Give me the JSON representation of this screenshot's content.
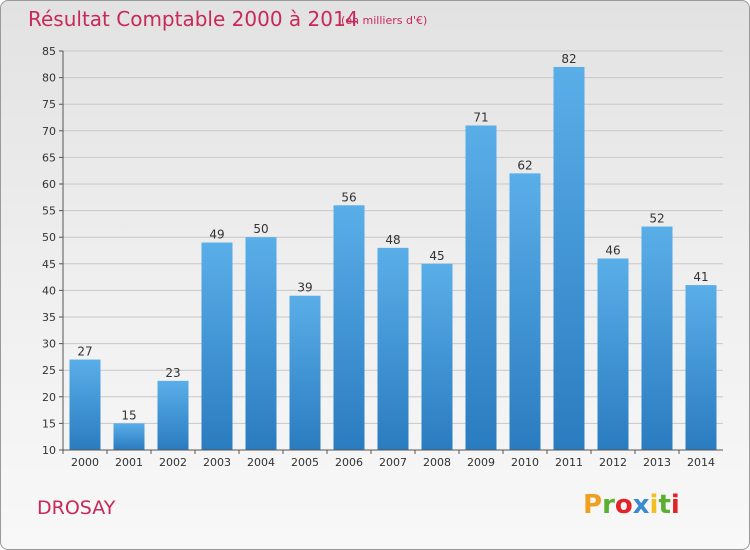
{
  "header": {
    "title": "Résultat Comptable 2000 à 2014",
    "subtitle": "(en milliers d'€)"
  },
  "footer": {
    "commune": "DROSAY",
    "logo_text": "Proxiti"
  },
  "colors": {
    "title": "#c8285a",
    "bar_top": "#5aaee8",
    "bar_bottom": "#2a7cc0",
    "logo_letters": [
      "#f0a020",
      "#5ab030",
      "#e0242a",
      "#3a8ad0",
      "#f0c020",
      "#5ab030",
      "#e0242a"
    ]
  },
  "chart_data": {
    "type": "bar",
    "title": "Résultat Comptable 2000 à 2014",
    "subtitle": "(en milliers d'€)",
    "xlabel": "",
    "ylabel": "",
    "categories": [
      "2000",
      "2001",
      "2002",
      "2003",
      "2004",
      "2005",
      "2006",
      "2007",
      "2008",
      "2009",
      "2010",
      "2011",
      "2012",
      "2013",
      "2014"
    ],
    "values": [
      27,
      15,
      23,
      49,
      50,
      39,
      56,
      48,
      45,
      71,
      62,
      82,
      46,
      52,
      41
    ],
    "ylim": [
      10,
      85
    ],
    "yticks": [
      10,
      15,
      20,
      25,
      30,
      35,
      40,
      45,
      50,
      55,
      60,
      65,
      70,
      75,
      80,
      85
    ],
    "grid": true,
    "legend": "none"
  }
}
